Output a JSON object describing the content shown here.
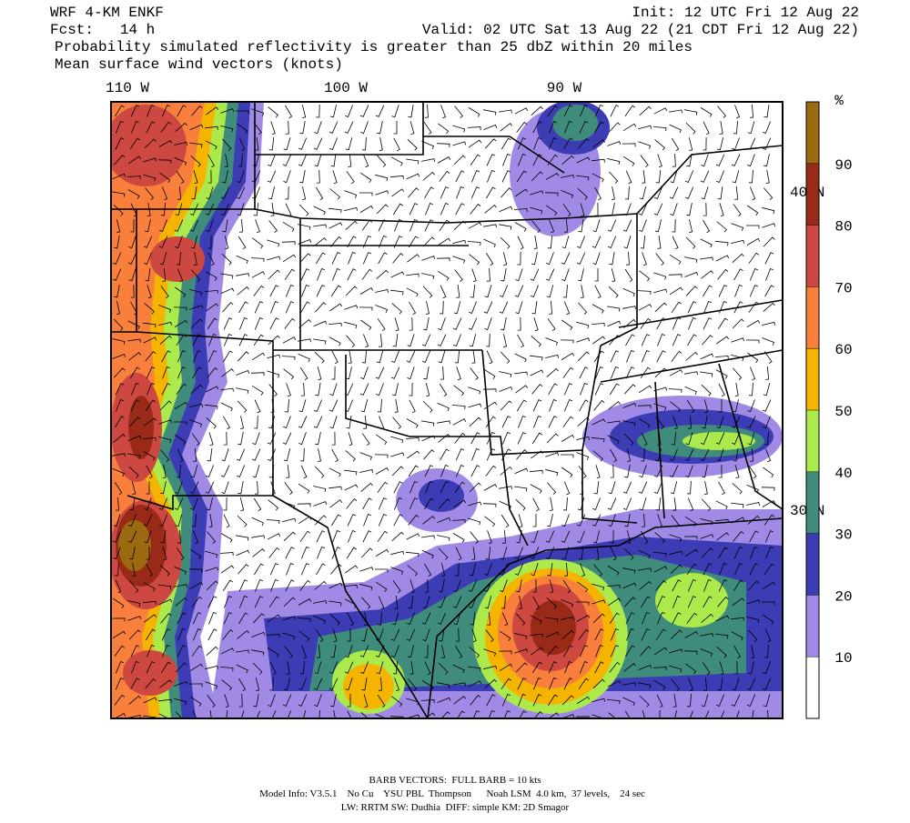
{
  "header": {
    "model": "WRF 4-KM ENKF",
    "init": "Init: 12 UTC Fri 12 Aug 22",
    "forecast": "Fcst:   14 h",
    "valid": "Valid: 02 UTC Sat 13 Aug 22 (21 CDT Fri 12 Aug 22)",
    "field": "Probability simulated reflectivity is greater than 25 dbZ within 20 miles",
    "vectors": "Mean surface wind vectors (knots)"
  },
  "map": {
    "longitude_labels": [
      "110 W",
      "100 W",
      "90 W"
    ],
    "latitude_labels": [
      "40 N",
      "30 N"
    ]
  },
  "colorbar": {
    "unit": "%",
    "lim": [
      0,
      100
    ],
    "ticks": [
      10,
      20,
      30,
      40,
      50,
      60,
      70,
      80,
      90
    ],
    "colors": [
      "#ffffff",
      "#a08ae6",
      "#3c3cb4",
      "#3f8c7c",
      "#acea4c",
      "#f4b400",
      "#f8803c",
      "#cc4840",
      "#9a2a18",
      "#9c6a10"
    ]
  },
  "footer": {
    "barbs": "BARB VECTORS:  FULL BARB = 10 kts",
    "model_info": "Model Info: V3.5.1    No Cu    YSU PBL  Thompson      Noah LSM  4.0 km,  37 levels,    24 sec",
    "physics": "LW: RRTM SW: Dudhia  DIFF: simple KM: 2D Smagor"
  }
}
